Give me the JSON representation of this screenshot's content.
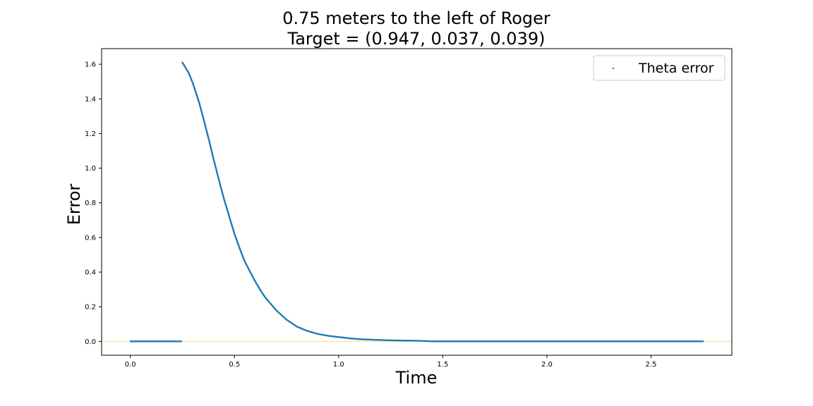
{
  "chart_data": {
    "type": "scatter",
    "title": [
      "0.75 meters to the left of Roger",
      "Target = (0.947, 0.037, 0.039)"
    ],
    "xlabel": "Time",
    "ylabel": "Error",
    "xlim": [
      -0.138,
      2.888
    ],
    "ylim": [
      -0.08,
      1.69
    ],
    "xticks": [
      0.0,
      0.5,
      1.0,
      1.5,
      2.0,
      2.5
    ],
    "xtick_labels": [
      "0.0",
      "0.5",
      "1.0",
      "1.5",
      "2.0",
      "2.5"
    ],
    "yticks": [
      0.0,
      0.2,
      0.4,
      0.6,
      0.8,
      1.0,
      1.2,
      1.4,
      1.6
    ],
    "ytick_labels": [
      "0.0",
      "0.2",
      "0.4",
      "0.6",
      "0.8",
      "1.0",
      "1.2",
      "1.4",
      "1.6"
    ],
    "grid": false,
    "legend_position": "top-right",
    "reference_line": {
      "y": 0.0,
      "style": "dotted",
      "color": "#f5b800"
    },
    "series": [
      {
        "name": "Theta error",
        "color": "#1f77b4",
        "x": [
          0.0,
          0.1,
          0.2,
          0.245,
          0.25,
          0.28,
          0.3,
          0.33,
          0.35,
          0.38,
          0.4,
          0.43,
          0.45,
          0.48,
          0.5,
          0.53,
          0.55,
          0.58,
          0.6,
          0.63,
          0.65,
          0.7,
          0.75,
          0.8,
          0.85,
          0.9,
          0.95,
          1.0,
          1.05,
          1.1,
          1.15,
          1.2,
          1.25,
          1.3,
          1.35,
          1.4,
          1.45,
          1.5,
          1.75,
          2.0,
          2.25,
          2.5,
          2.75
        ],
        "y": [
          0.0,
          0.0,
          0.0,
          0.0,
          1.61,
          1.55,
          1.49,
          1.38,
          1.29,
          1.15,
          1.05,
          0.91,
          0.82,
          0.7,
          0.62,
          0.52,
          0.46,
          0.39,
          0.345,
          0.285,
          0.25,
          0.18,
          0.125,
          0.085,
          0.06,
          0.043,
          0.032,
          0.025,
          0.018,
          0.013,
          0.01,
          0.008,
          0.006,
          0.005,
          0.004,
          0.003,
          0.0,
          0.0,
          0.0,
          0.0,
          0.0,
          0.0,
          0.0
        ]
      }
    ]
  }
}
